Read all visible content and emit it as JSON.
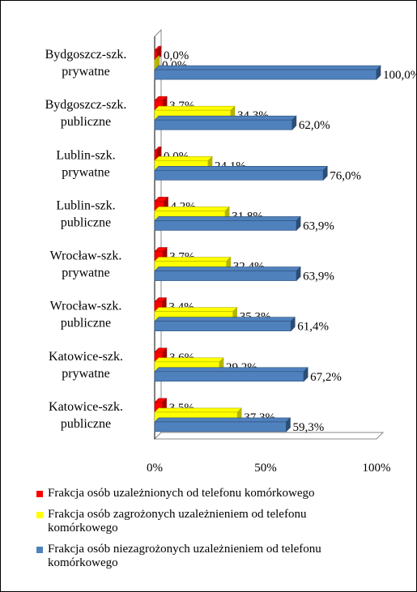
{
  "chart_data": {
    "type": "bar",
    "orientation": "horizontal",
    "categories": [
      [
        "Bydgoszcz-szk.",
        "prywatne"
      ],
      [
        "Bydgoszcz-szk.",
        "publiczne"
      ],
      [
        "Lublin-szk.",
        "prywatne"
      ],
      [
        "Lublin-szk.",
        "publiczne"
      ],
      [
        "Wrocław-szk.",
        "prywatne"
      ],
      [
        "Wrocław-szk.",
        "publiczne"
      ],
      [
        "Katowice-szk.",
        "prywatne"
      ],
      [
        "Katowice-szk.",
        "publiczne"
      ]
    ],
    "series": [
      {
        "name": "Frakcja osób uzależnionych od telefonu komórkowego",
        "color": "#ff0000",
        "values": [
          0.0,
          3.7,
          0.0,
          4.2,
          3.7,
          3.4,
          3.6,
          3.5
        ],
        "labels": [
          "0,0%",
          "3,7%",
          "0,0%",
          "4,2%",
          "3,7%",
          "3,4%",
          "3,6%",
          "3,5%"
        ]
      },
      {
        "name": "Frakcja osób zagrożonych uzależnieniem od telefonu komórkowego",
        "color": "#ffff00",
        "values": [
          0.0,
          34.3,
          24.1,
          31.8,
          32.4,
          35.3,
          29.2,
          37.3
        ],
        "labels": [
          "0,0%",
          "34,3%",
          "24,1%",
          "31,8%",
          "32,4%",
          "35,3%",
          "29,2%",
          "37,3%"
        ]
      },
      {
        "name": "Frakcja osób niezagrożonych uzależnieniem od telefonu komórkowego",
        "color": "#4f81bd",
        "values": [
          100.0,
          62.0,
          76.0,
          63.9,
          63.9,
          61.4,
          67.2,
          59.3
        ],
        "labels": [
          "100,0%",
          "62,0%",
          "76,0%",
          "63,9%",
          "63,9%",
          "61,4%",
          "67,2%",
          "59,3%"
        ]
      }
    ],
    "x_ticks": [
      "0%",
      "50%",
      "100%"
    ],
    "xlim": [
      0,
      100
    ],
    "legend_position": "bottom",
    "grid": false
  },
  "legend": {
    "items": [
      {
        "lines": [
          "Frakcja osób uzależnionych od telefonu komórkowego"
        ],
        "color": "#ff0000"
      },
      {
        "lines": [
          "Frakcja osób zagrożonych uzależnieniem od telefonu",
          "komórkowego"
        ],
        "color": "#ffff00"
      },
      {
        "lines": [
          "Frakcja osób niezagrożonych uzależnieniem od telefonu",
          "komórkowego"
        ],
        "color": "#4f81bd"
      }
    ]
  }
}
